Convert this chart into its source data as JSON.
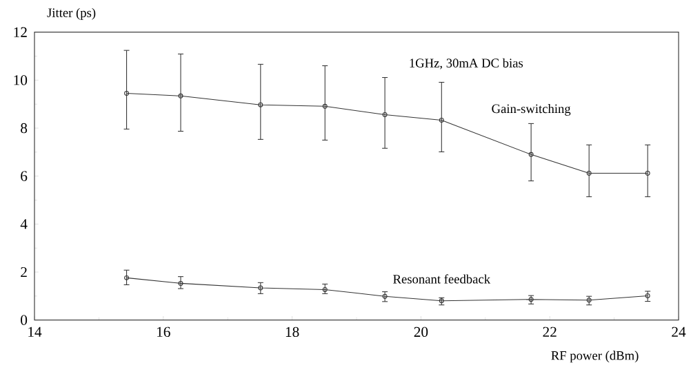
{
  "chart_data": {
    "type": "line",
    "xlabel": "RF power (dBm)",
    "ylabel": "Jitter (ps)",
    "annotations": [
      "1GHz, 30mA DC bias"
    ],
    "xlim": [
      14,
      24
    ],
    "xticks": [
      14,
      16,
      18,
      20,
      22,
      24
    ],
    "ylim": [
      0,
      12
    ],
    "yticks": [
      0,
      2,
      4,
      6,
      8,
      10,
      12
    ],
    "grid": false,
    "legend": false,
    "marker": "circle",
    "line_style": "solid",
    "series": [
      {
        "name": "Gain-switching",
        "color": "#333333",
        "x": [
          15.43,
          16.27,
          17.51,
          18.51,
          19.44,
          20.32,
          21.71,
          22.61,
          23.52
        ],
        "values": [
          9.45,
          9.34,
          8.97,
          8.91,
          8.56,
          8.33,
          6.9,
          6.12,
          6.12
        ],
        "errors": [
          [
            7.96,
            11.24
          ],
          [
            7.87,
            11.09
          ],
          [
            7.53,
            10.66
          ],
          [
            7.5,
            10.6
          ],
          [
            7.16,
            10.11
          ],
          [
            7.01,
            9.91
          ],
          [
            5.8,
            8.19
          ],
          [
            5.14,
            7.3
          ],
          [
            5.14,
            7.3
          ]
        ]
      },
      {
        "name": "Resonant feedback",
        "color": "#333333",
        "x": [
          15.43,
          16.27,
          17.51,
          18.51,
          19.44,
          20.32,
          21.71,
          22.61,
          23.52
        ],
        "values": [
          1.76,
          1.53,
          1.34,
          1.27,
          0.99,
          0.8,
          0.86,
          0.83,
          1.01
        ],
        "errors": [
          [
            1.47,
            2.08
          ],
          [
            1.31,
            1.81
          ],
          [
            1.1,
            1.56
          ],
          [
            1.1,
            1.5
          ],
          [
            0.77,
            1.18
          ],
          [
            0.63,
            0.93
          ],
          [
            0.67,
            1.02
          ],
          [
            0.63,
            0.99
          ],
          [
            0.78,
            1.2
          ]
        ]
      }
    ]
  }
}
